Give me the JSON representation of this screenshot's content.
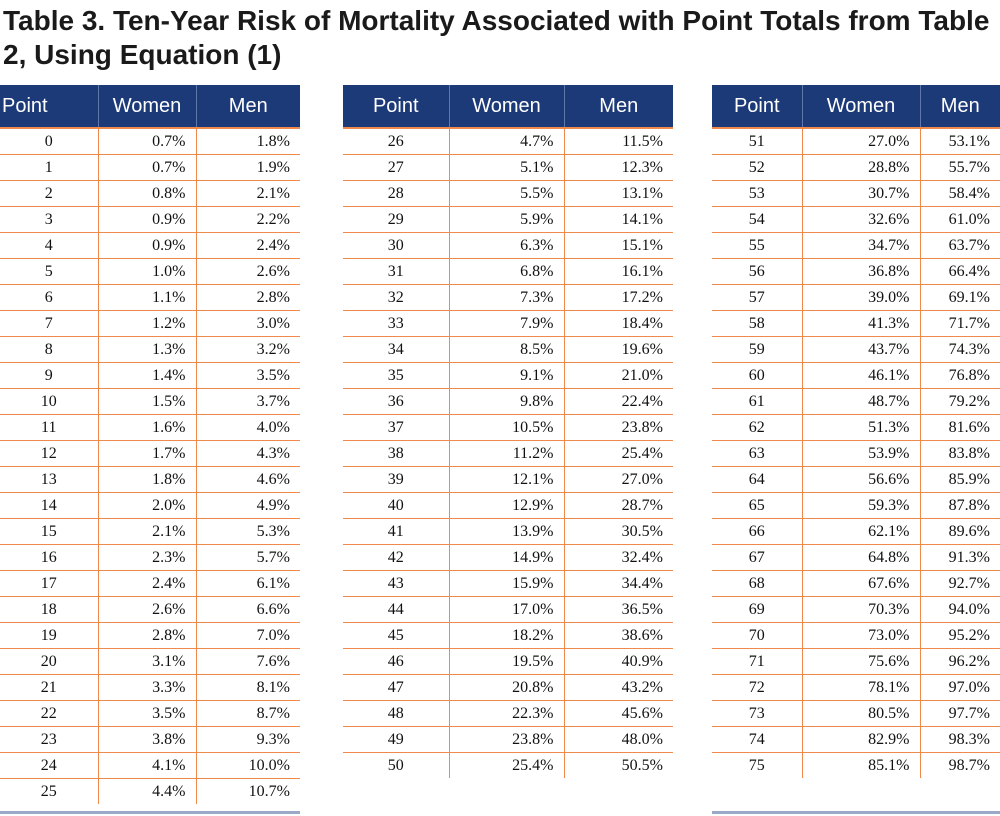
{
  "title": "Table 3. Ten-Year Risk of Mortality Associated with Point Totals from Table 2, Using Equation (1)",
  "headers": {
    "point": "Point",
    "women": "Women",
    "men": "Men"
  },
  "tables": [
    {
      "rows": [
        {
          "point": "0",
          "women": "0.7%",
          "men": "1.8%"
        },
        {
          "point": "1",
          "women": "0.7%",
          "men": "1.9%"
        },
        {
          "point": "2",
          "women": "0.8%",
          "men": "2.1%"
        },
        {
          "point": "3",
          "women": "0.9%",
          "men": "2.2%"
        },
        {
          "point": "4",
          "women": "0.9%",
          "men": "2.4%"
        },
        {
          "point": "5",
          "women": "1.0%",
          "men": "2.6%"
        },
        {
          "point": "6",
          "women": "1.1%",
          "men": "2.8%"
        },
        {
          "point": "7",
          "women": "1.2%",
          "men": "3.0%"
        },
        {
          "point": "8",
          "women": "1.3%",
          "men": "3.2%"
        },
        {
          "point": "9",
          "women": "1.4%",
          "men": "3.5%"
        },
        {
          "point": "10",
          "women": "1.5%",
          "men": "3.7%"
        },
        {
          "point": "11",
          "women": "1.6%",
          "men": "4.0%"
        },
        {
          "point": "12",
          "women": "1.7%",
          "men": "4.3%"
        },
        {
          "point": "13",
          "women": "1.8%",
          "men": "4.6%"
        },
        {
          "point": "14",
          "women": "2.0%",
          "men": "4.9%"
        },
        {
          "point": "15",
          "women": "2.1%",
          "men": "5.3%"
        },
        {
          "point": "16",
          "women": "2.3%",
          "men": "5.7%"
        },
        {
          "point": "17",
          "women": "2.4%",
          "men": "6.1%"
        },
        {
          "point": "18",
          "women": "2.6%",
          "men": "6.6%"
        },
        {
          "point": "19",
          "women": "2.8%",
          "men": "7.0%"
        },
        {
          "point": "20",
          "women": "3.1%",
          "men": "7.6%"
        },
        {
          "point": "21",
          "women": "3.3%",
          "men": "8.1%"
        },
        {
          "point": "22",
          "women": "3.5%",
          "men": "8.7%"
        },
        {
          "point": "23",
          "women": "3.8%",
          "men": "9.3%"
        },
        {
          "point": "24",
          "women": "4.1%",
          "men": "10.0%"
        },
        {
          "point": "25",
          "women": "4.4%",
          "men": "10.7%"
        }
      ]
    },
    {
      "rows": [
        {
          "point": "26",
          "women": "4.7%",
          "men": "11.5%"
        },
        {
          "point": "27",
          "women": "5.1%",
          "men": "12.3%"
        },
        {
          "point": "28",
          "women": "5.5%",
          "men": "13.1%"
        },
        {
          "point": "29",
          "women": "5.9%",
          "men": "14.1%"
        },
        {
          "point": "30",
          "women": "6.3%",
          "men": "15.1%"
        },
        {
          "point": "31",
          "women": "6.8%",
          "men": "16.1%"
        },
        {
          "point": "32",
          "women": "7.3%",
          "men": "17.2%"
        },
        {
          "point": "33",
          "women": "7.9%",
          "men": "18.4%"
        },
        {
          "point": "34",
          "women": "8.5%",
          "men": "19.6%"
        },
        {
          "point": "35",
          "women": "9.1%",
          "men": "21.0%"
        },
        {
          "point": "36",
          "women": "9.8%",
          "men": "22.4%"
        },
        {
          "point": "37",
          "women": "10.5%",
          "men": "23.8%"
        },
        {
          "point": "38",
          "women": "11.2%",
          "men": "25.4%"
        },
        {
          "point": "39",
          "women": "12.1%",
          "men": "27.0%"
        },
        {
          "point": "40",
          "women": "12.9%",
          "men": "28.7%"
        },
        {
          "point": "41",
          "women": "13.9%",
          "men": "30.5%"
        },
        {
          "point": "42",
          "women": "14.9%",
          "men": "32.4%"
        },
        {
          "point": "43",
          "women": "15.9%",
          "men": "34.4%"
        },
        {
          "point": "44",
          "women": "17.0%",
          "men": "36.5%"
        },
        {
          "point": "45",
          "women": "18.2%",
          "men": "38.6%"
        },
        {
          "point": "46",
          "women": "19.5%",
          "men": "40.9%"
        },
        {
          "point": "47",
          "women": "20.8%",
          "men": "43.2%"
        },
        {
          "point": "48",
          "women": "22.3%",
          "men": "45.6%"
        },
        {
          "point": "49",
          "women": "23.8%",
          "men": "48.0%"
        },
        {
          "point": "50",
          "women": "25.4%",
          "men": "50.5%"
        }
      ]
    },
    {
      "rows": [
        {
          "point": "51",
          "women": "27.0%",
          "men": "53.1%"
        },
        {
          "point": "52",
          "women": "28.8%",
          "men": "55.7%"
        },
        {
          "point": "53",
          "women": "30.7%",
          "men": "58.4%"
        },
        {
          "point": "54",
          "women": "32.6%",
          "men": "61.0%"
        },
        {
          "point": "55",
          "women": "34.7%",
          "men": "63.7%"
        },
        {
          "point": "56",
          "women": "36.8%",
          "men": "66.4%"
        },
        {
          "point": "57",
          "women": "39.0%",
          "men": "69.1%"
        },
        {
          "point": "58",
          "women": "41.3%",
          "men": "71.7%"
        },
        {
          "point": "59",
          "women": "43.7%",
          "men": "74.3%"
        },
        {
          "point": "60",
          "women": "46.1%",
          "men": "76.8%"
        },
        {
          "point": "61",
          "women": "48.7%",
          "men": "79.2%"
        },
        {
          "point": "62",
          "women": "51.3%",
          "men": "81.6%"
        },
        {
          "point": "63",
          "women": "53.9%",
          "men": "83.8%"
        },
        {
          "point": "64",
          "women": "56.6%",
          "men": "85.9%"
        },
        {
          "point": "65",
          "women": "59.3%",
          "men": "87.8%"
        },
        {
          "point": "66",
          "women": "62.1%",
          "men": "89.6%"
        },
        {
          "point": "67",
          "women": "64.8%",
          "men": "91.3%"
        },
        {
          "point": "68",
          "women": "67.6%",
          "men": "92.7%"
        },
        {
          "point": "69",
          "women": "70.3%",
          "men": "94.0%"
        },
        {
          "point": "70",
          "women": "73.0%",
          "men": "95.2%"
        },
        {
          "point": "71",
          "women": "75.6%",
          "men": "96.2%"
        },
        {
          "point": "72",
          "women": "78.1%",
          "men": "97.0%"
        },
        {
          "point": "73",
          "women": "80.5%",
          "men": "97.7%"
        },
        {
          "point": "74",
          "women": "82.9%",
          "men": "98.3%"
        },
        {
          "point": "75",
          "women": "85.1%",
          "men": "98.7%"
        }
      ]
    }
  ],
  "colors": {
    "header_bg": "#1d3a78",
    "header_text": "#ffffff",
    "rule": "#ef8a4c"
  }
}
